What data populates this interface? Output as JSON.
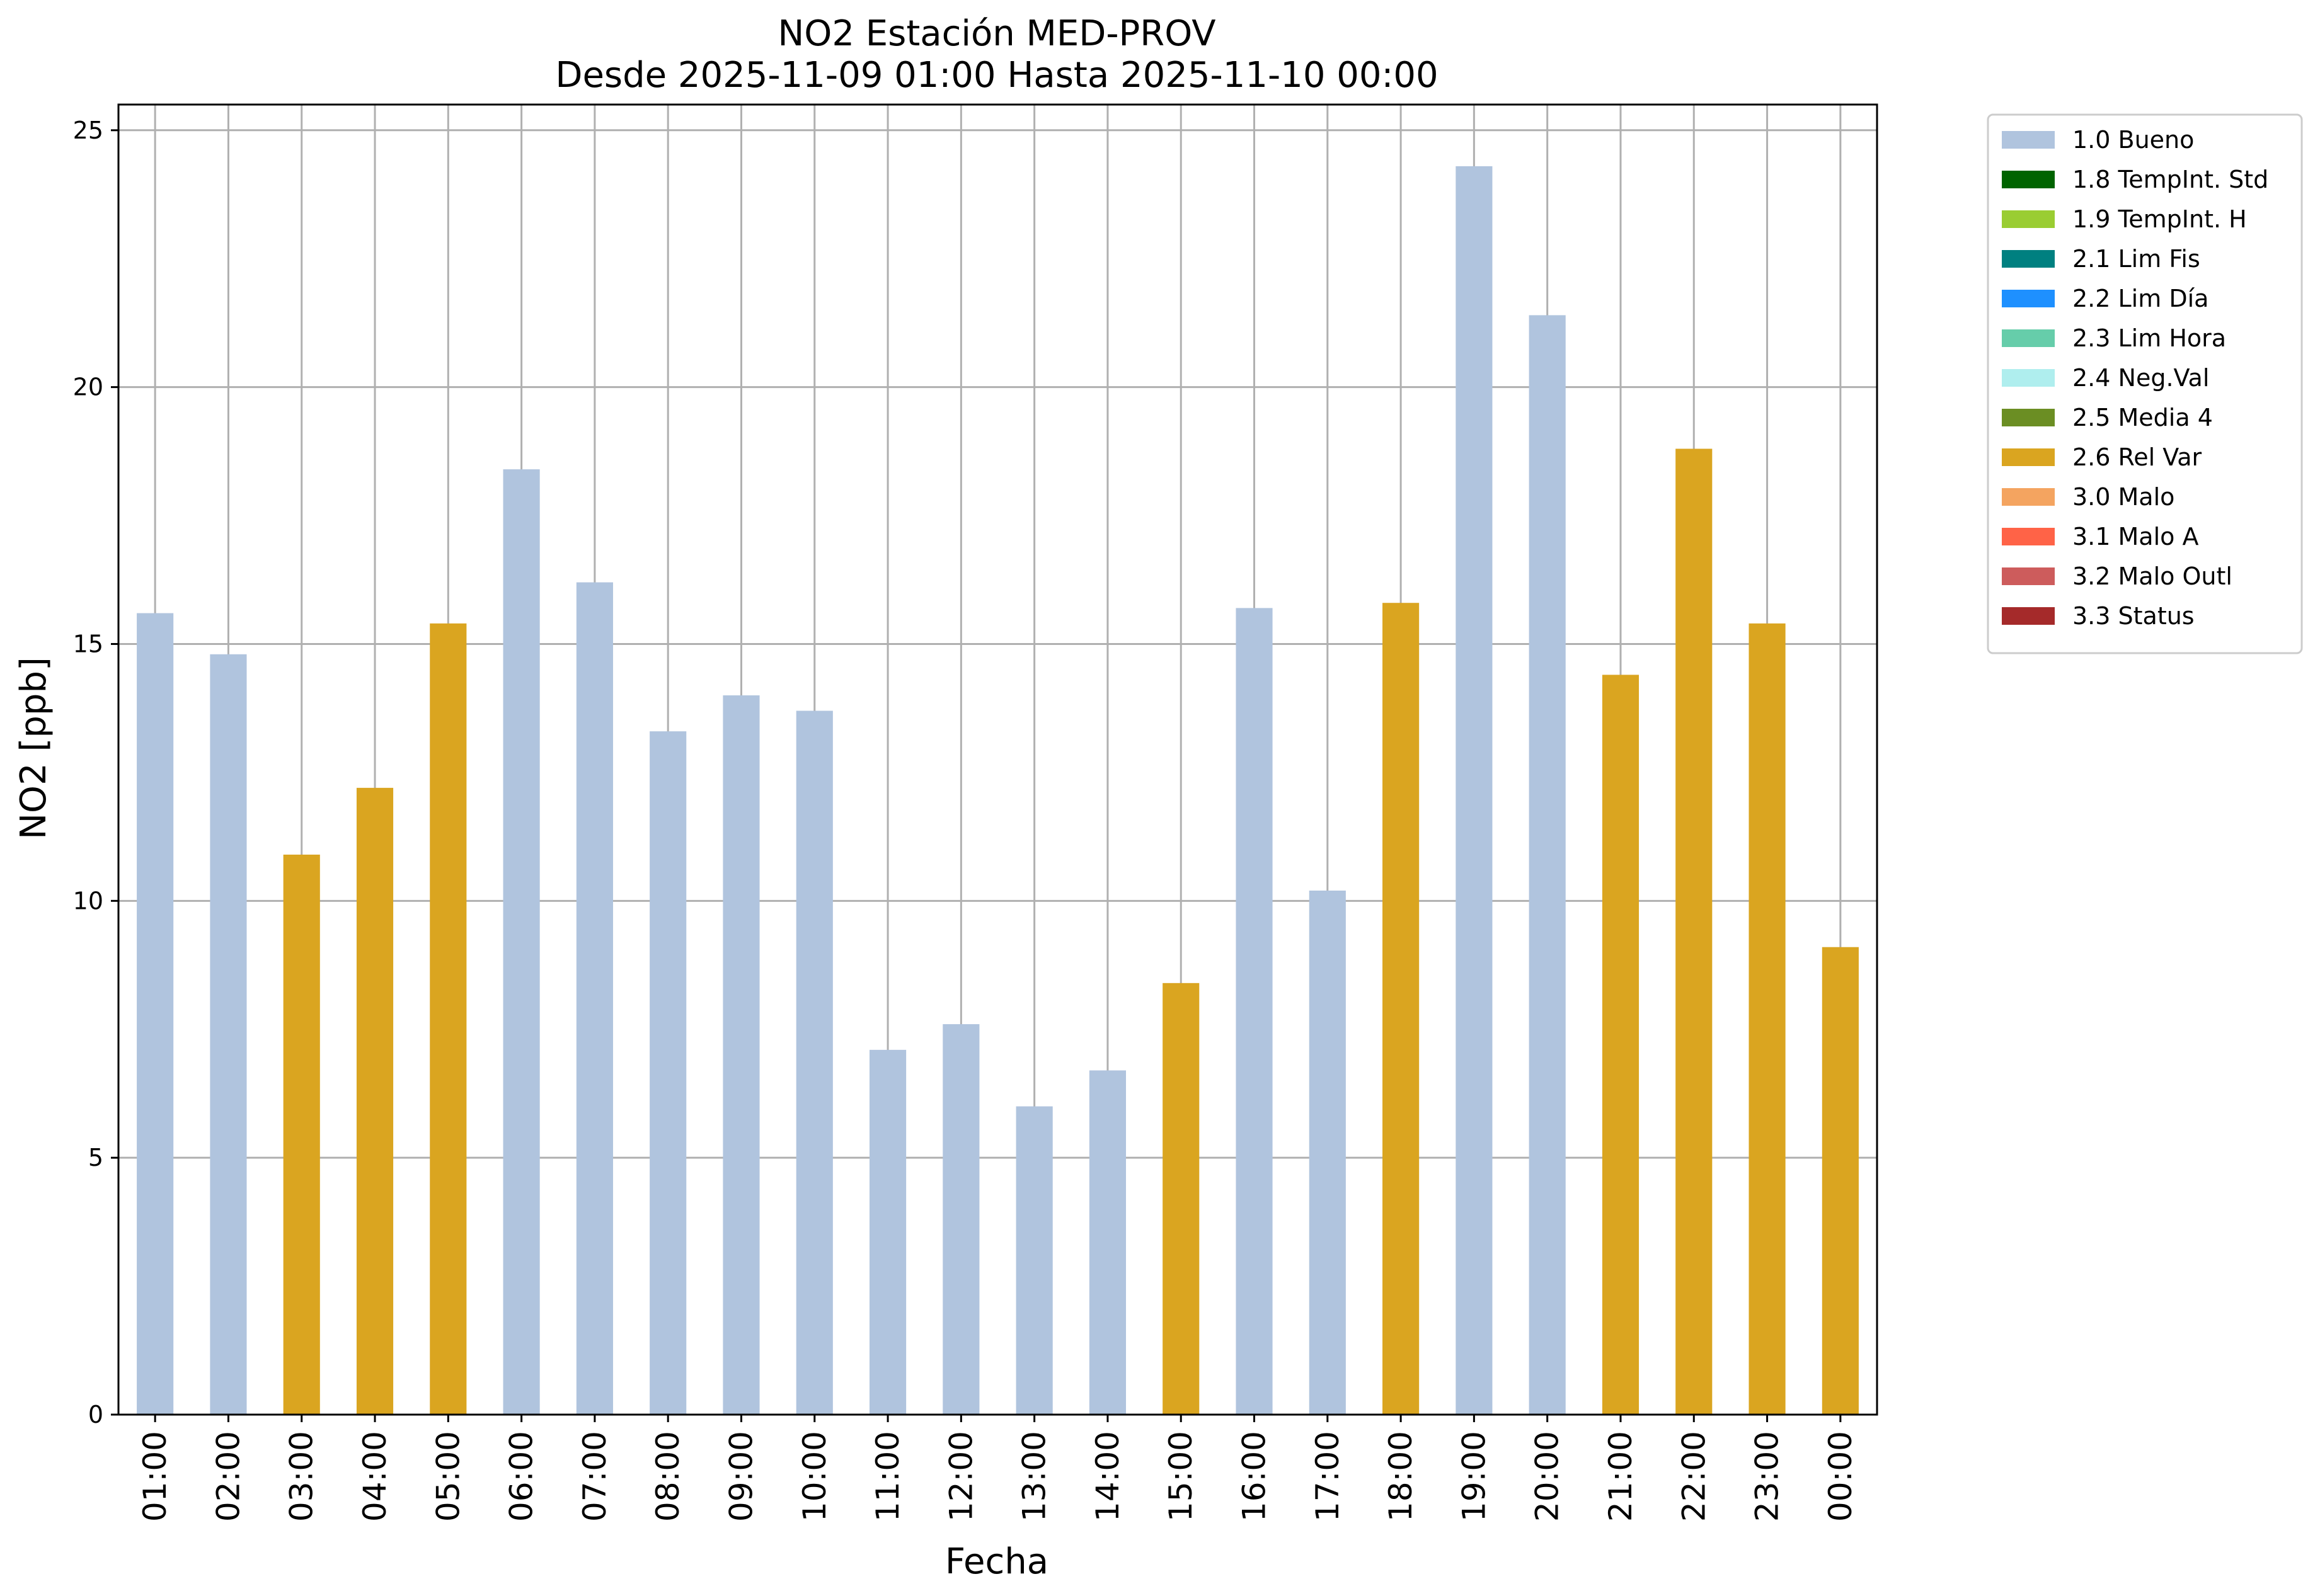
{
  "chart_data": {
    "type": "bar",
    "title": "NO2 Estación MED-PROV",
    "subtitle": "Desde 2025-11-09 01:00 Hasta 2025-11-10 00:00",
    "xlabel": "Fecha",
    "ylabel": "NO2 [ppb]",
    "ylim": [
      0,
      25.5
    ],
    "yticks": [
      0,
      5,
      10,
      15,
      20,
      25
    ],
    "grid": true,
    "legend_position": "outside-top-right",
    "categories": [
      "01:00",
      "02:00",
      "03:00",
      "04:00",
      "05:00",
      "06:00",
      "07:00",
      "08:00",
      "09:00",
      "10:00",
      "11:00",
      "12:00",
      "13:00",
      "14:00",
      "15:00",
      "16:00",
      "17:00",
      "18:00",
      "19:00",
      "20:00",
      "21:00",
      "22:00",
      "23:00",
      "00:00"
    ],
    "values": [
      15.6,
      14.8,
      10.9,
      12.2,
      15.4,
      18.4,
      16.2,
      13.3,
      14.0,
      13.7,
      7.1,
      7.6,
      6.0,
      6.7,
      8.4,
      15.7,
      10.2,
      15.8,
      24.3,
      21.4,
      14.4,
      18.8,
      15.4,
      9.1
    ],
    "flags": [
      "1.0 Bueno",
      "1.0 Bueno",
      "2.6 Rel Var",
      "2.6 Rel Var",
      "2.6 Rel Var",
      "1.0 Bueno",
      "1.0 Bueno",
      "1.0 Bueno",
      "1.0 Bueno",
      "1.0 Bueno",
      "1.0 Bueno",
      "1.0 Bueno",
      "1.0 Bueno",
      "1.0 Bueno",
      "2.6 Rel Var",
      "1.0 Bueno",
      "1.0 Bueno",
      "2.6 Rel Var",
      "1.0 Bueno",
      "1.0 Bueno",
      "2.6 Rel Var",
      "2.6 Rel Var",
      "2.6 Rel Var",
      "2.6 Rel Var"
    ],
    "legend": [
      {
        "label": "1.0 Bueno",
        "color": "#b0c4de"
      },
      {
        "label": "1.8 TempInt. Std",
        "color": "#006400"
      },
      {
        "label": "1.9 TempInt. H",
        "color": "#9acd32"
      },
      {
        "label": "2.1 Lim Fis",
        "color": "#008080"
      },
      {
        "label": "2.2 Lim Día",
        "color": "#1e90ff"
      },
      {
        "label": "2.3 Lim Hora",
        "color": "#66cdaa"
      },
      {
        "label": "2.4 Neg.Val",
        "color": "#afeeee"
      },
      {
        "label": "2.5 Media 4",
        "color": "#6b8e23"
      },
      {
        "label": "2.6 Rel Var",
        "color": "#daa520"
      },
      {
        "label": "3.0 Malo",
        "color": "#f4a460"
      },
      {
        "label": "3.1 Malo A",
        "color": "#ff6347"
      },
      {
        "label": "3.2 Malo Outl",
        "color": "#cd5c5c"
      },
      {
        "label": "3.3 Status",
        "color": "#a52a2a"
      }
    ]
  }
}
